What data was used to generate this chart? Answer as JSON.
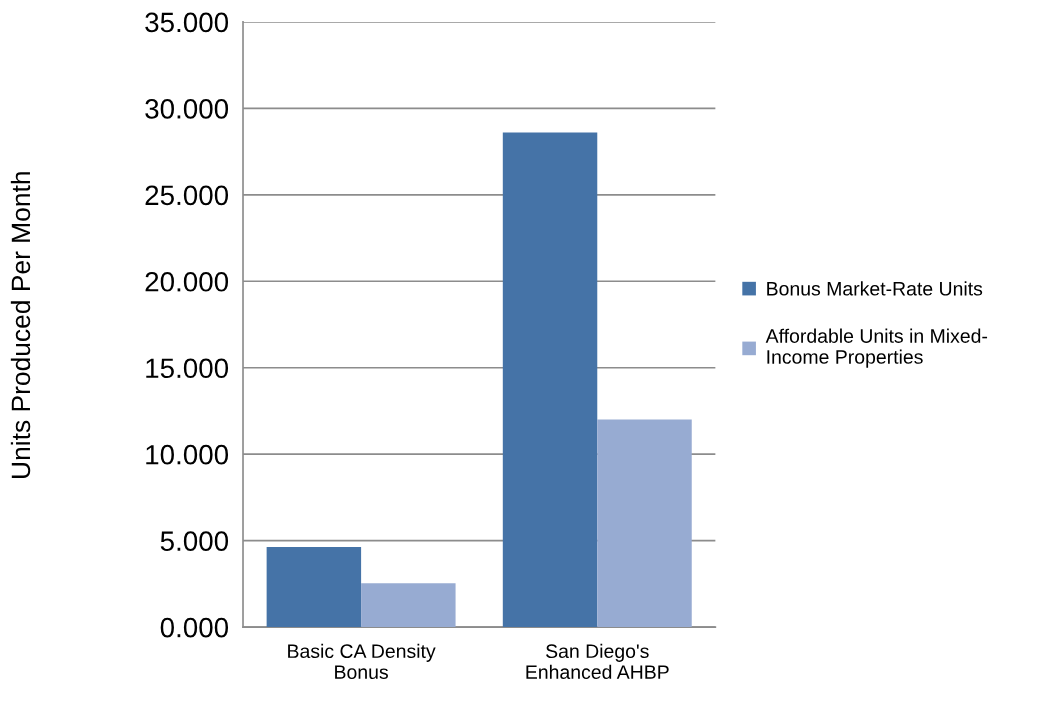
{
  "chart_data": {
    "type": "bar",
    "ylabel": "Units Produced Per Month",
    "categories": [
      "Basic CA Density\nBonus",
      "San Diego's\nEnhanced AHBP"
    ],
    "series": [
      {
        "name": "Bonus Market-Rate Units",
        "color": "#4573a7",
        "values": [
          4.63,
          28.6
        ]
      },
      {
        "name": "Affordable Units in Mixed-\nIncome Properties",
        "color": "#97abd2",
        "values": [
          2.54,
          12.0
        ]
      }
    ],
    "ylim": [
      0,
      35
    ],
    "yticks": [
      {
        "value": 0,
        "label": "0.000"
      },
      {
        "value": 5,
        "label": "5.000"
      },
      {
        "value": 10,
        "label": "10.000"
      },
      {
        "value": 15,
        "label": "15.000"
      },
      {
        "value": 20,
        "label": "20.000"
      },
      {
        "value": 25,
        "label": "25.000"
      },
      {
        "value": 30,
        "label": "30.000"
      },
      {
        "value": 35,
        "label": "35.000"
      }
    ],
    "grid": "y",
    "legend": "right"
  }
}
